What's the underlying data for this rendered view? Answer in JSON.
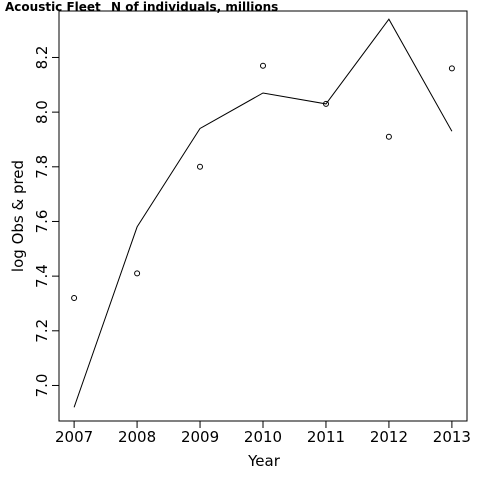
{
  "chart_data": {
    "type": "line",
    "title": "Acoustic Fleet",
    "subtitle": "N of individuals, millions",
    "xlabel": "Year",
    "ylabel": "log Obs & pred",
    "x": [
      2007,
      2008,
      2009,
      2010,
      2011,
      2012,
      2013
    ],
    "xticks": [
      "2007",
      "2008",
      "2009",
      "2010",
      "2011",
      "2012",
      "2013"
    ],
    "yticks": [
      "7.0",
      "7.2",
      "7.4",
      "7.6",
      "7.8",
      "8.0",
      "8.2"
    ],
    "ytick_values": [
      7.0,
      7.2,
      7.4,
      7.6,
      7.8,
      8.0,
      8.2
    ],
    "xlim": [
      2006.76,
      2013.24
    ],
    "ylim": [
      6.87,
      8.37
    ],
    "series": [
      {
        "role": "observed",
        "marker": "open-circle",
        "values": [
          7.32,
          7.41,
          7.8,
          8.17,
          8.03,
          7.91,
          8.16
        ]
      },
      {
        "role": "predicted",
        "line": "solid",
        "values": [
          6.92,
          7.58,
          7.94,
          8.07,
          8.03,
          8.34,
          7.93
        ]
      }
    ],
    "colors": {
      "line": "#000000",
      "points": "#000000",
      "background": "#ffffff"
    },
    "grid": false,
    "legend": "none"
  }
}
